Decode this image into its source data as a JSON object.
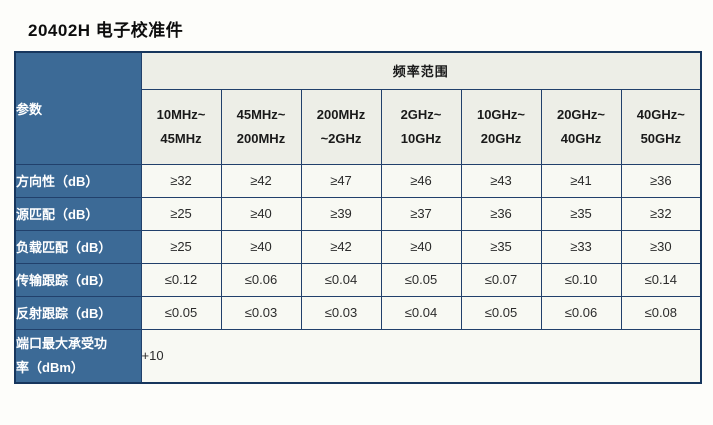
{
  "page": {
    "title": "20402H 电子校准件"
  },
  "colors": {
    "label_blue": "#3c6a96",
    "header_light": "#edeee7",
    "cell_light": "#f8f9f3",
    "border_dark": "#17365d",
    "label_separator": "#c9d9ea"
  },
  "table": {
    "param_header": "参数",
    "freq_header": "频率范围",
    "columns": [
      {
        "l1": "10MHz~",
        "l2": "45MHz"
      },
      {
        "l1": "45MHz~",
        "l2": "200MHz"
      },
      {
        "l1": "200MHz",
        "l2": "~2GHz"
      },
      {
        "l1": "2GHz~",
        "l2": "10GHz"
      },
      {
        "l1": "10GHz~",
        "l2": "20GHz"
      },
      {
        "l1": "20GHz~",
        "l2": "40GHz"
      },
      {
        "l1": "40GHz~",
        "l2": "50GHz"
      }
    ],
    "rows": [
      {
        "label": "方向性（dB）",
        "values": [
          "≥32",
          "≥42",
          "≥47",
          "≥46",
          "≥43",
          "≥41",
          "≥36"
        ]
      },
      {
        "label": "源匹配（dB）",
        "values": [
          "≥25",
          "≥40",
          "≥39",
          "≥37",
          "≥36",
          "≥35",
          "≥32"
        ]
      },
      {
        "label": "负载匹配（dB）",
        "values": [
          "≥25",
          "≥40",
          "≥42",
          "≥40",
          "≥35",
          "≥33",
          "≥30"
        ]
      },
      {
        "label": "传输跟踪（dB）",
        "values": [
          "≤0.12",
          "≤0.06",
          "≤0.04",
          "≤0.05",
          "≤0.07",
          "≤0.10",
          "≤0.14"
        ]
      },
      {
        "label": "反射跟踪（dB）",
        "values": [
          "≤0.05",
          "≤0.03",
          "≤0.03",
          "≤0.04",
          "≤0.05",
          "≤0.06",
          "≤0.08"
        ]
      }
    ],
    "power_row": {
      "label_line1": "端口最大承受功",
      "label_line2": "率（dBm）",
      "value": "+10"
    }
  }
}
